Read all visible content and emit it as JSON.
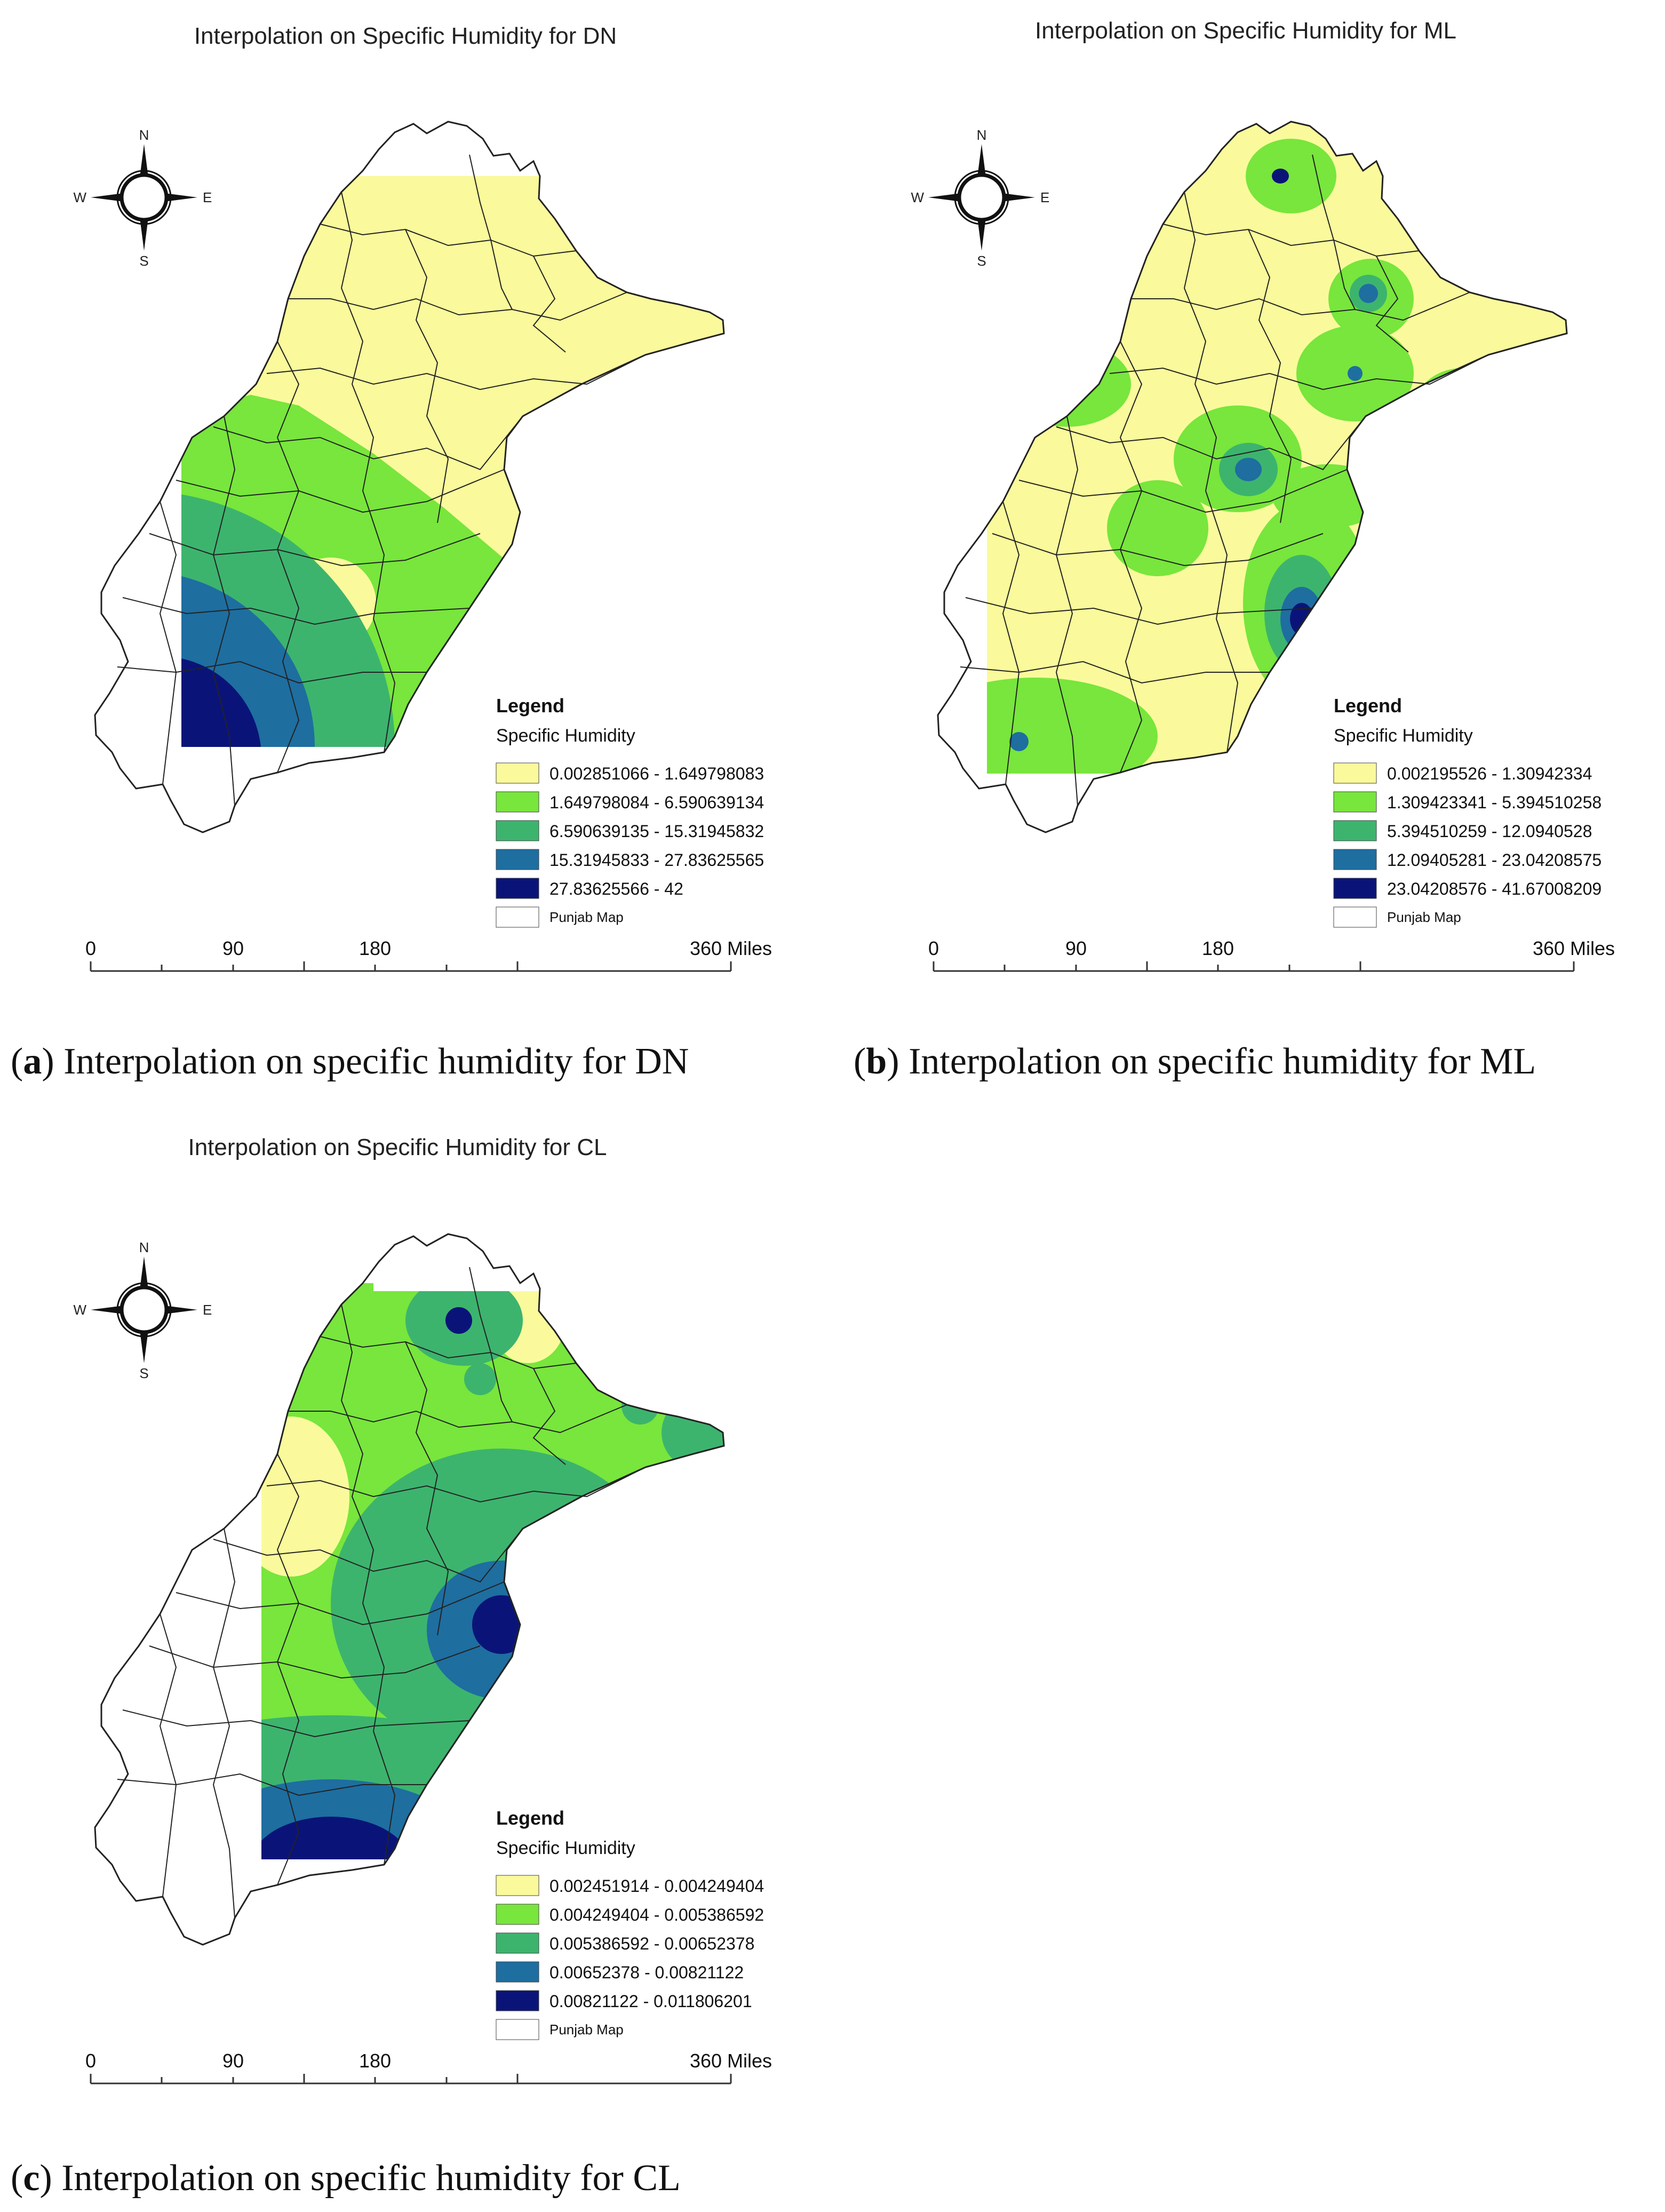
{
  "colors": {
    "c1": "#fafa9c",
    "c2": "#78e63c",
    "c3": "#3cb46e",
    "c4": "#1e6ea0",
    "c5": "#0a1478",
    "outline": "#222222"
  },
  "common": {
    "legend_title": "Legend",
    "legend_subtitle": "Specific Humidity",
    "basemap_label": "Punjab Map",
    "compass": {
      "n": "N",
      "s": "S",
      "e": "E",
      "w": "W"
    },
    "scale": {
      "ticks": [
        "0",
        "90",
        "180",
        "360 Miles"
      ]
    }
  },
  "panels": [
    {
      "id": "a",
      "title": "Interpolation on Specific Humidity for DN",
      "caption_letter": "a",
      "caption_text": "Interpolation on specific humidity for DN",
      "legend": [
        "0.002851066 - 1.649798083",
        "1.649798084 - 6.590639134",
        "6.590639135 - 15.31945832",
        "15.31945833 - 27.83625565",
        "27.83625566 - 42"
      ]
    },
    {
      "id": "b",
      "title": "Interpolation on Specific Humidity for ML",
      "caption_letter": "b",
      "caption_text": "Interpolation on specific humidity for ML",
      "legend": [
        "0.002195526 - 1.30942334",
        "1.309423341 - 5.394510258",
        "5.394510259 - 12.0940528",
        "12.09405281 - 23.04208575",
        "23.04208576 - 41.67008209"
      ]
    },
    {
      "id": "c",
      "title": "Interpolation on Specific Humidity for CL",
      "caption_letter": "c",
      "caption_text": "Interpolation on specific humidity for CL",
      "legend": [
        "0.002451914 - 0.004249404",
        "0.004249404 - 0.005386592",
        "0.005386592 - 0.00652378",
        "0.00652378 - 0.00821122",
        "0.00821122 - 0.011806201"
      ]
    }
  ]
}
